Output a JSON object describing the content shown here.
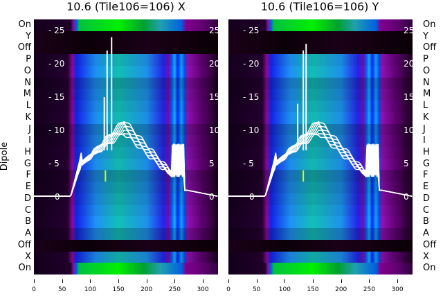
{
  "chart_data": [
    {
      "type": "heatmap+line",
      "title": "10.6 (Tile106=106) X",
      "ylabel": "Dipole",
      "rows": [
        "On",
        "Y",
        "Off",
        "P",
        "O",
        "N",
        "M",
        "L",
        "K",
        "J",
        "I",
        "H",
        "G",
        "F",
        "E",
        "D",
        "C",
        "B",
        "A",
        "Off",
        "X",
        "On"
      ],
      "xticks": [
        0,
        50,
        100,
        150,
        200,
        250,
        300
      ],
      "xlim": [
        0,
        327
      ],
      "inner_yticks": [
        0,
        5,
        10,
        15,
        20,
        25
      ],
      "inner_ylim": [
        -11.5,
        26.5
      ],
      "spikes": [
        [
          125,
          15
        ],
        [
          130,
          22
        ],
        [
          138,
          24
        ]
      ]
    },
    {
      "type": "heatmap+line",
      "title": "10.6 (Tile106=106) Y",
      "ylabel": "",
      "rows": [
        "On",
        "Y",
        "Off",
        "P",
        "O",
        "N",
        "M",
        "L",
        "K",
        "J",
        "I",
        "H",
        "G",
        "F",
        "E",
        "D",
        "C",
        "B",
        "A",
        "Off",
        "X",
        "On"
      ],
      "xticks": [
        0,
        50,
        100,
        150,
        200,
        250,
        300
      ],
      "xlim": [
        0,
        327
      ],
      "inner_yticks": [
        0,
        5,
        10,
        15,
        20,
        25
      ],
      "inner_ylim": [
        -11.5,
        26.5
      ],
      "spikes": [
        [
          123,
          14
        ],
        [
          133,
          22
        ],
        [
          138,
          23
        ]
      ]
    }
  ],
  "colors": {
    "line": "#ffffff",
    "marker": "#d0ff00"
  }
}
